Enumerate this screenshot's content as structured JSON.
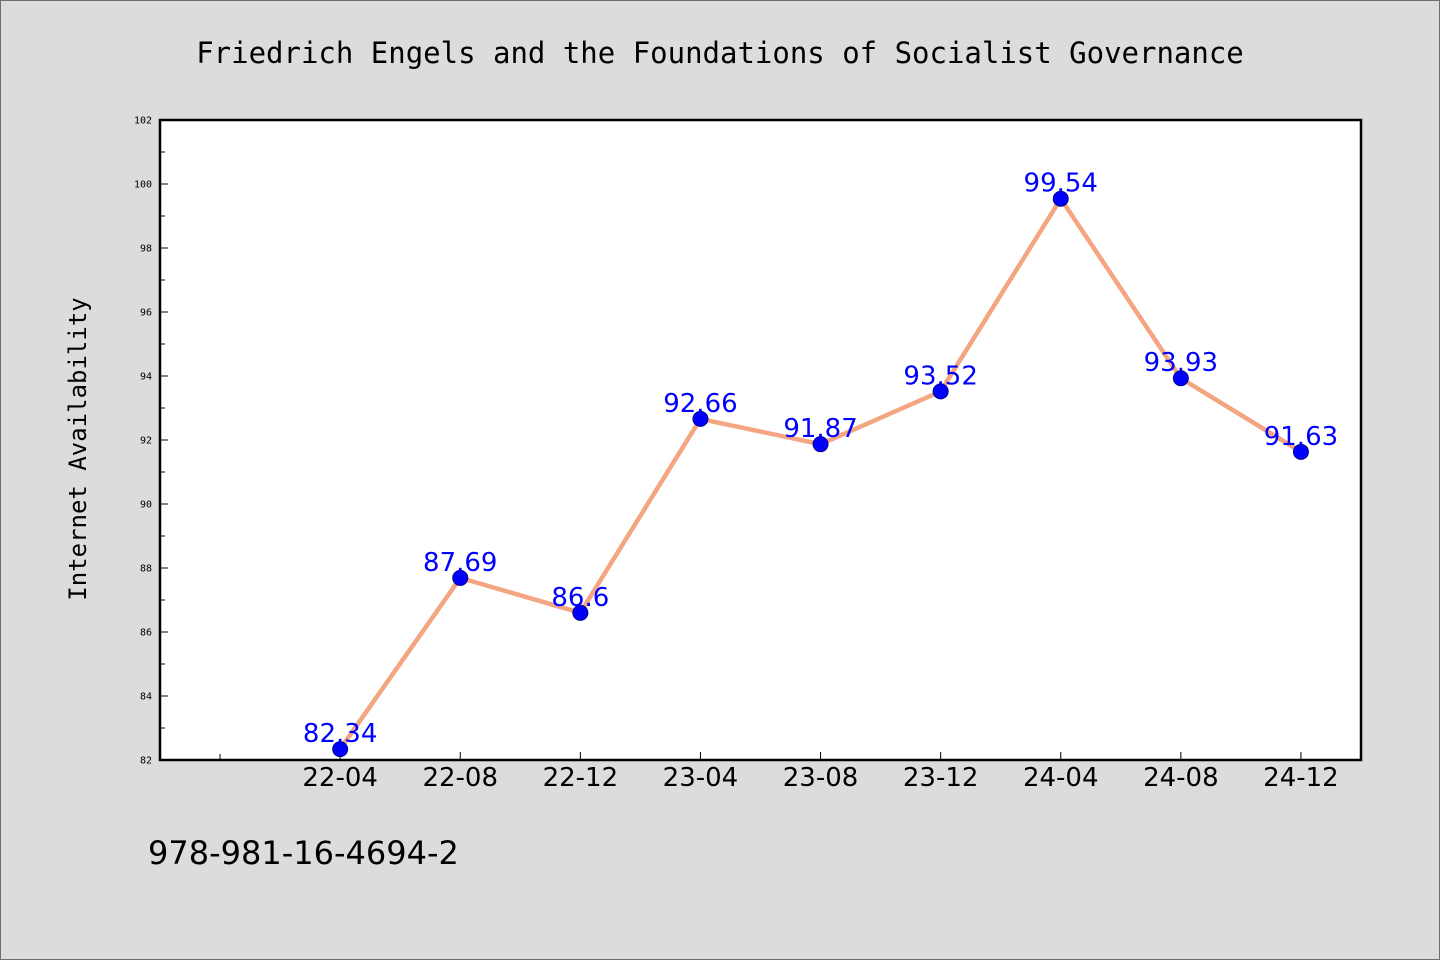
{
  "chart_data": {
    "type": "line",
    "title": "Friedrich Engels and the Foundations of Socialist Governance",
    "xlabel": "",
    "ylabel": "Internet Availability",
    "categories": [
      "22-04",
      "22-08",
      "22-12",
      "23-04",
      "23-08",
      "23-12",
      "24-04",
      "24-08",
      "24-12"
    ],
    "series": [
      {
        "values": [
          82.34,
          87.69,
          86.6,
          92.66,
          91.87,
          93.52,
          99.54,
          93.93,
          91.63
        ]
      }
    ],
    "data_labels": [
      "82.34",
      "87.69",
      "86.6",
      "92.66",
      "91.87",
      "93.52",
      "99.54",
      "93.93",
      "91.63"
    ],
    "ylim": [
      82,
      102
    ],
    "yticks": [
      "82",
      "84",
      "86",
      "88",
      "90",
      "92",
      "94",
      "96",
      "98",
      "100",
      "102"
    ],
    "grid": false,
    "legend": "none",
    "colors": {
      "line": "#f4a582",
      "marker": "#0000ff",
      "labels": "#0000ff",
      "background": "#dcdcdc",
      "plot_area": "#ffffff"
    }
  },
  "footer": {
    "isbn": "978-981-16-4694-2"
  }
}
